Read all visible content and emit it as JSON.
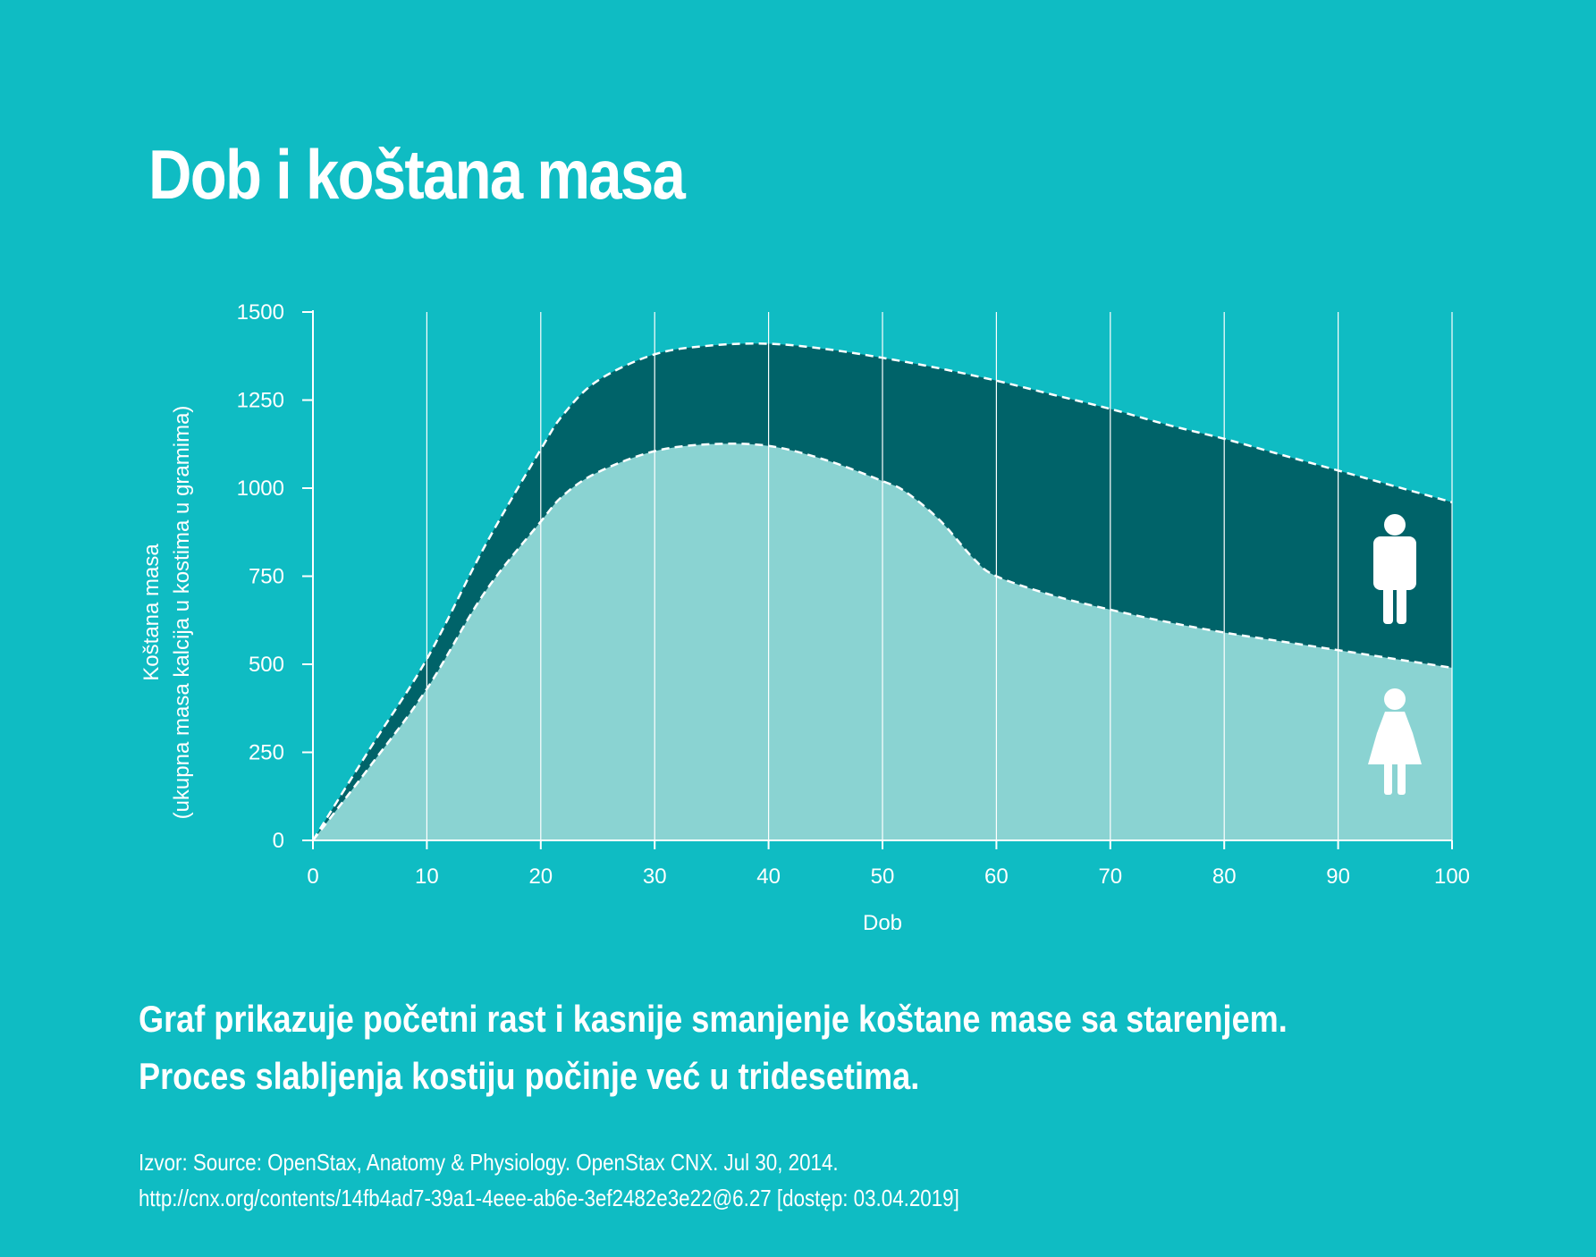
{
  "title": "Dob i koštana masa",
  "caption": {
    "line1": "Graf prikazuje početni rast i kasnije smanjenje koštane mase sa starenjem.",
    "line2": "Proces slabljenja kostiju počinje već u tridesetima."
  },
  "source": {
    "line1": "Izvor: Source: OpenStax, Anatomy & Physiology. OpenStax CNX. Jul 30, 2014.",
    "line2": "http://cnx.org/contents/14fb4ad7-39a1-4eee-ab6e-3ef2482e3e22@6.27 [dostęp: 03.04.2019]"
  },
  "colors": {
    "background": "#0fbcc3",
    "men_band": "#006369",
    "women_area": "#8ad3d2",
    "text": "#ffffff"
  },
  "icons": {
    "men": "male-figure-icon",
    "women": "female-figure-icon"
  },
  "chart_data": {
    "type": "area",
    "title": "Dob i koštana masa",
    "xlabel": "Dob",
    "ylabel": "Koštana masa",
    "ylabel_sub": "(ukupna masa kalcija u kostima u gramima)",
    "xlim": [
      0,
      100
    ],
    "ylim": [
      0,
      1500
    ],
    "x_ticks": [
      0,
      10,
      20,
      30,
      40,
      50,
      60,
      70,
      80,
      90,
      100
    ],
    "y_ticks": [
      0,
      250,
      500,
      750,
      1000,
      1250,
      1500
    ],
    "grid": "vertical",
    "legend": "icons at right",
    "series": [
      {
        "name": "",
        "icon": "male-figure-icon",
        "color": "#006369",
        "x": [
          0,
          5,
          10,
          15,
          20,
          22,
          25,
          30,
          35,
          40,
          45,
          50,
          55,
          60,
          65,
          70,
          75,
          80,
          85,
          90,
          95,
          100
        ],
        "y": [
          0,
          260,
          515,
          830,
          1110,
          1210,
          1305,
          1380,
          1405,
          1410,
          1395,
          1370,
          1340,
          1305,
          1265,
          1225,
          1180,
          1140,
          1095,
          1050,
          1005,
          960
        ]
      },
      {
        "name": "",
        "icon": "female-figure-icon",
        "color": "#8ad3d2",
        "x": [
          0,
          5,
          10,
          15,
          20,
          22,
          25,
          30,
          35,
          40,
          45,
          50,
          52,
          55,
          58,
          60,
          65,
          70,
          75,
          80,
          85,
          90,
          95,
          100
        ],
        "y": [
          0,
          210,
          430,
          700,
          905,
          980,
          1045,
          1105,
          1125,
          1120,
          1080,
          1020,
          990,
          910,
          800,
          750,
          695,
          655,
          620,
          590,
          565,
          540,
          515,
          490
        ]
      }
    ]
  }
}
